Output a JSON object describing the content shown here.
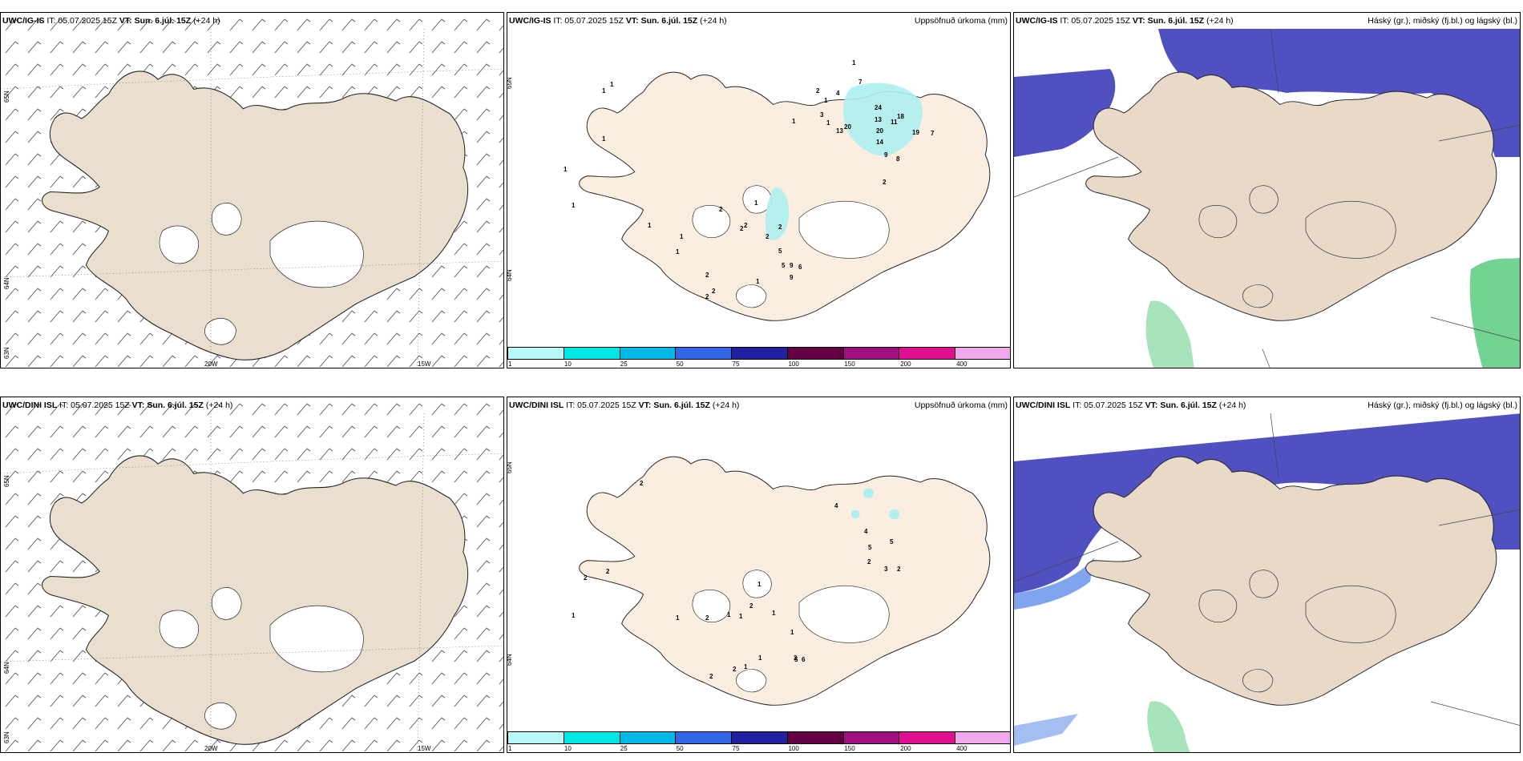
{
  "rows": [
    {
      "model": "UWC/IG-IS",
      "init_label": "IT: 05.07.2025 15Z",
      "valid_label": "VT: Sun. 6.júl. 15Z",
      "lead_label": "(+24 h)",
      "precip_labels": [
        "1",
        "1",
        "1",
        "1",
        "1",
        "1",
        "2",
        "2",
        "2",
        "2",
        "2",
        "2",
        "2",
        "2",
        "5",
        "5",
        "9",
        "6",
        "9",
        "1",
        "1",
        "1",
        "2",
        "3",
        "4",
        "7",
        "1",
        "1",
        "13",
        "20",
        "24",
        "13",
        "20",
        "11",
        "18",
        "14",
        "19",
        "7",
        "9",
        "8",
        "2",
        "1",
        "1",
        "1"
      ],
      "precip_shade_density": "heavy",
      "cloud_extent": "moderate"
    },
    {
      "model": "UWC/DINI ISL",
      "init_label": "IT: 05.07.2025 15Z",
      "valid_label": "VT: Sun. 6.júl. 15Z",
      "lead_label": "(+24 h)",
      "precip_labels": [
        "2",
        "2",
        "2",
        "1",
        "1",
        "2",
        "1",
        "2",
        "2",
        "1",
        "2",
        "1",
        "3",
        "1",
        "5",
        "6",
        "1",
        "4",
        "4",
        "2",
        "5",
        "5",
        "3",
        "2",
        "1",
        "1"
      ],
      "precip_shade_density": "light",
      "cloud_extent": "extensive"
    }
  ],
  "wind_panel": {
    "lat_labels": [
      "65N",
      "64N",
      "63N"
    ],
    "lon_labels": [
      "20W",
      "15W"
    ]
  },
  "precip_panel": {
    "title": "Uppsöfnuð úrkoma (mm)",
    "lat_labels": [
      "65N",
      "64N"
    ],
    "colorbar": {
      "colors": [
        "#b9f8f8",
        "#00e6e6",
        "#00b8e6",
        "#3366e6",
        "#2020a0",
        "#660044",
        "#a01080",
        "#e01090",
        "#f0a8ec"
      ],
      "ticks": [
        "1",
        "10",
        "25",
        "50",
        "75",
        "100",
        "150",
        "200",
        "400"
      ]
    }
  },
  "cloud_panel": {
    "title": "Háský (gr.), miðský (fj.bl.) og lágský (bl.)",
    "colors": {
      "high": "#50c878",
      "mid": "#5050c0",
      "low": "#4a7de6"
    }
  },
  "map_colors": {
    "land_wind": "#eadfcf",
    "land_precip": "#fbeee1",
    "land_cloud": "#e8d9c8",
    "glacier": "#ffffff",
    "coast": "#222222"
  }
}
